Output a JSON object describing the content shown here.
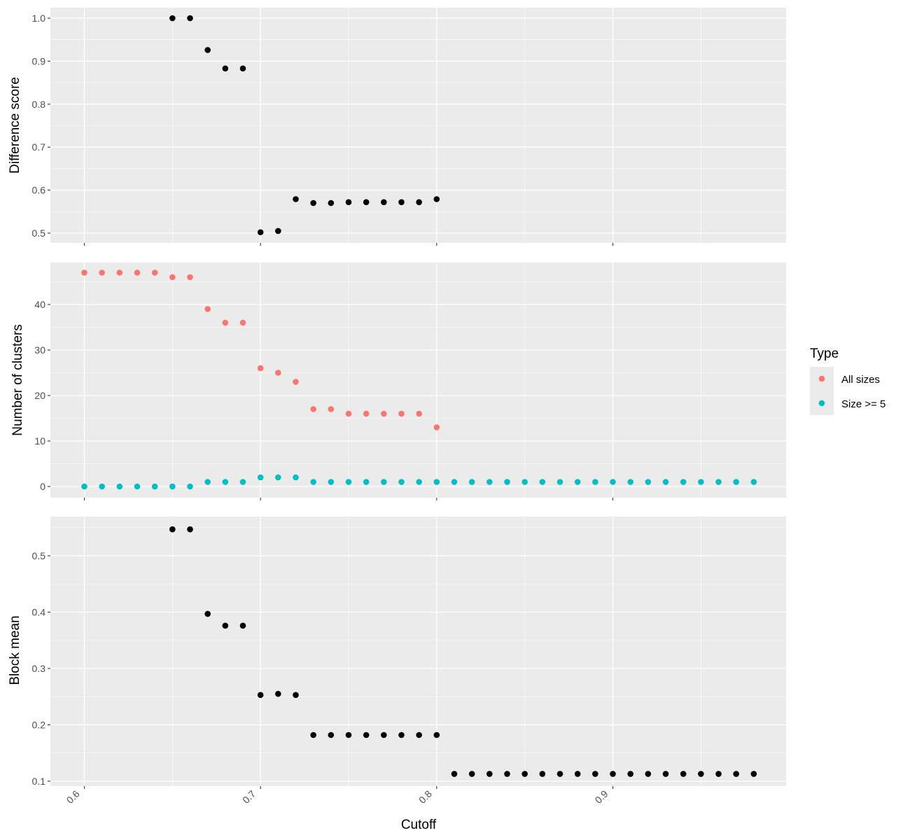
{
  "colors": {
    "panel_bg": "#EBEBEB",
    "grid": "#FFFFFF",
    "point_default": "#000000",
    "all_sizes": "#F8766D",
    "size_ge5": "#00BFC4"
  },
  "chart_data": [
    {
      "type": "scatter",
      "panel": "top",
      "xlabel": "",
      "ylabel": "Difference score",
      "xlim": [
        0.6,
        0.98
      ],
      "ylim": [
        0.5,
        1.0
      ],
      "x_ticks": [
        0.6,
        0.7,
        0.8,
        0.9
      ],
      "y_ticks": [
        0.5,
        0.6,
        0.7,
        0.8,
        0.9,
        1.0
      ],
      "y_tick_labels": [
        "0.5",
        "0.6",
        "0.7",
        "0.8",
        "0.9",
        "1.0"
      ],
      "series": [
        {
          "x": [
            0.65,
            0.66,
            0.67,
            0.68,
            0.69,
            0.7,
            0.71,
            0.72,
            0.73,
            0.74,
            0.75,
            0.76,
            0.77,
            0.78,
            0.79,
            0.8
          ],
          "values": [
            1.0,
            1.0,
            0.926,
            0.883,
            0.883,
            0.502,
            0.505,
            0.579,
            0.57,
            0.57,
            0.572,
            0.572,
            0.572,
            0.572,
            0.572,
            0.579
          ]
        }
      ]
    },
    {
      "type": "scatter",
      "panel": "middle",
      "xlabel": "",
      "ylabel": "Number of clusters",
      "xlim": [
        0.6,
        0.98
      ],
      "ylim": [
        0,
        47
      ],
      "x_ticks": [
        0.6,
        0.7,
        0.8,
        0.9
      ],
      "y_ticks": [
        0,
        10,
        20,
        30,
        40
      ],
      "y_tick_labels": [
        "0",
        "10",
        "20",
        "30",
        "40"
      ],
      "series": [
        {
          "name": "All sizes",
          "x": [
            0.6,
            0.61,
            0.62,
            0.63,
            0.64,
            0.65,
            0.66,
            0.67,
            0.68,
            0.69,
            0.7,
            0.71,
            0.72,
            0.73,
            0.74,
            0.75,
            0.76,
            0.77,
            0.78,
            0.79,
            0.8
          ],
          "values": [
            47,
            47,
            47,
            47,
            47,
            46,
            46,
            39,
            36,
            36,
            26,
            25,
            23,
            17,
            17,
            16,
            16,
            16,
            16,
            16,
            13
          ]
        },
        {
          "name": "Size >= 5",
          "x": [
            0.6,
            0.61,
            0.62,
            0.63,
            0.64,
            0.65,
            0.66,
            0.67,
            0.68,
            0.69,
            0.7,
            0.71,
            0.72,
            0.73,
            0.74,
            0.75,
            0.76,
            0.77,
            0.78,
            0.79,
            0.8,
            0.81,
            0.82,
            0.83,
            0.84,
            0.85,
            0.86,
            0.87,
            0.88,
            0.89,
            0.9,
            0.91,
            0.92,
            0.93,
            0.94,
            0.95,
            0.96,
            0.97,
            0.98
          ],
          "values": [
            0,
            0,
            0,
            0,
            0,
            0,
            0,
            1,
            1,
            1,
            2,
            2,
            2,
            1,
            1,
            1,
            1,
            1,
            1,
            1,
            1,
            1,
            1,
            1,
            1,
            1,
            1,
            1,
            1,
            1,
            1,
            1,
            1,
            1,
            1,
            1,
            1,
            1,
            1
          ]
        }
      ],
      "legend": {
        "title": "Type",
        "entries": [
          "All sizes",
          "Size >= 5"
        ],
        "position": "right"
      }
    },
    {
      "type": "scatter",
      "panel": "bottom",
      "xlabel": "Cutoff",
      "ylabel": "Block mean",
      "xlim": [
        0.6,
        0.98
      ],
      "ylim": [
        0.1,
        0.55
      ],
      "x_ticks": [
        0.6,
        0.7,
        0.8,
        0.9
      ],
      "x_tick_labels": [
        "0.6",
        "0.7",
        "0.8",
        "0.9"
      ],
      "y_ticks": [
        0.1,
        0.2,
        0.3,
        0.4,
        0.5
      ],
      "y_tick_labels": [
        "0.1",
        "0.2",
        "0.3",
        "0.4",
        "0.5"
      ],
      "series": [
        {
          "x": [
            0.65,
            0.66,
            0.67,
            0.68,
            0.69,
            0.7,
            0.71,
            0.72,
            0.73,
            0.74,
            0.75,
            0.76,
            0.77,
            0.78,
            0.79,
            0.8,
            0.81,
            0.82,
            0.83,
            0.84,
            0.85,
            0.86,
            0.87,
            0.88,
            0.89,
            0.9,
            0.91,
            0.92,
            0.93,
            0.94,
            0.95,
            0.96,
            0.97,
            0.98
          ],
          "values": [
            0.547,
            0.547,
            0.397,
            0.376,
            0.376,
            0.253,
            0.255,
            0.253,
            0.182,
            0.182,
            0.182,
            0.182,
            0.182,
            0.182,
            0.182,
            0.182,
            0.113,
            0.113,
            0.113,
            0.113,
            0.113,
            0.113,
            0.113,
            0.113,
            0.113,
            0.113,
            0.113,
            0.113,
            0.113,
            0.113,
            0.113,
            0.113,
            0.113,
            0.113
          ]
        }
      ]
    }
  ]
}
